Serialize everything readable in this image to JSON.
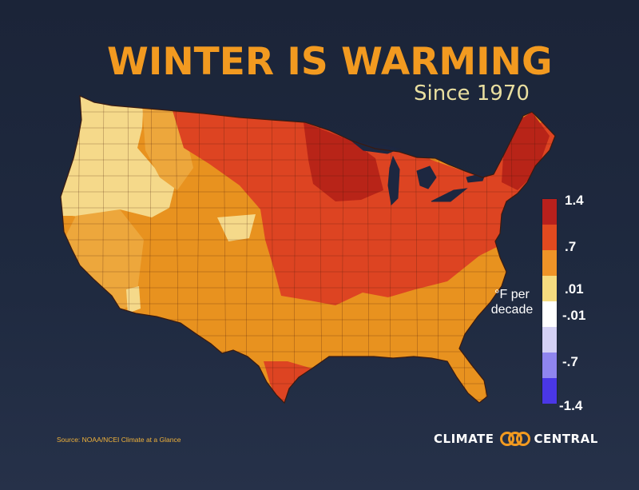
{
  "header": {
    "title": "WINTER IS WARMING",
    "subtitle": "Since 1970"
  },
  "legend": {
    "unit_line1": "°F per",
    "unit_line2": "decade",
    "ticks": [
      "1.4",
      ".7",
      ".01",
      "-.01",
      "-.7",
      "-1.4"
    ],
    "colors": [
      "#b8201c",
      "#e24a1f",
      "#ef9427",
      "#f6dc7f",
      "#ffffff",
      "#d4d1f5",
      "#8f85ef",
      "#4a37e6"
    ]
  },
  "map": {
    "colors": {
      "dark_red": "#b82418",
      "red": "#dd4422",
      "orange": "#e8921f",
      "light_orange": "#eda73c",
      "yellow": "#f5d98a"
    }
  },
  "footer": {
    "source": "Source: NOAA/NCEI Climate at a Glance",
    "brand_left": "CLIMATE",
    "brand_right": "CENTRAL"
  }
}
